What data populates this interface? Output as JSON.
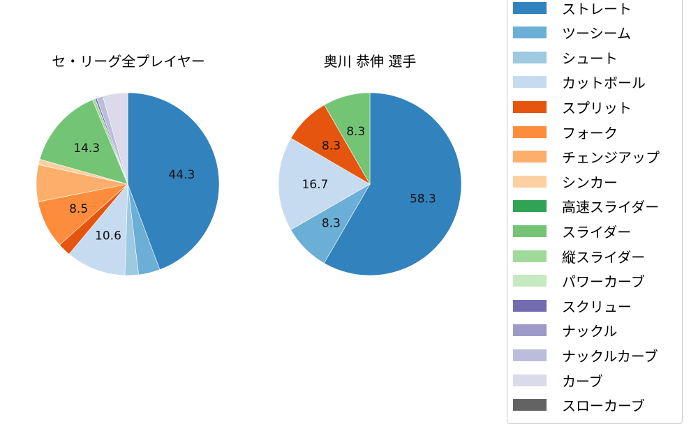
{
  "chart_data": [
    {
      "type": "pie",
      "title": "セ・リーグ全プレイヤー",
      "categories": [
        "ストレート",
        "ツーシーム",
        "シュート",
        "カットボール",
        "スプリット",
        "フォーク",
        "チェンジアップ",
        "シンカー",
        "高速スライダー",
        "スライダー",
        "縦スライダー",
        "パワーカーブ",
        "スクリュー",
        "ナックル",
        "ナックルカーブ",
        "カーブ",
        "スローカーブ"
      ],
      "values": [
        44.3,
        3.8,
        2.4,
        10.6,
        2.3,
        8.5,
        6.5,
        1.0,
        0.0,
        14.3,
        0.5,
        0.0,
        0.3,
        0.0,
        1.1,
        4.4,
        0.0
      ],
      "labels_shown": {
        "ストレート": "44.3",
        "カットボール": "10.6",
        "フォーク": "8.5",
        "スライダー": "14.3"
      },
      "start_angle": 90,
      "direction": "clockwise"
    },
    {
      "type": "pie",
      "title": "奥川 恭伸  選手",
      "categories": [
        "ストレート",
        "ツーシーム",
        "カットボール",
        "スプリット",
        "スライダー"
      ],
      "values": [
        58.3,
        8.3,
        16.7,
        8.3,
        8.3
      ],
      "labels_shown": {
        "ストレート": "58.3",
        "ツーシーム": "8.3",
        "カットボール": "16.7",
        "スプリット": "8.3",
        "スライダー": "8.3"
      },
      "start_angle": 90,
      "direction": "clockwise"
    }
  ],
  "titles": {
    "left": "セ・リーグ全プレイヤー",
    "right": "奥川 恭伸  選手"
  },
  "legend": {
    "items": [
      {
        "label": "ストレート",
        "color": "#3182bd"
      },
      {
        "label": "ツーシーム",
        "color": "#6baed6"
      },
      {
        "label": "シュート",
        "color": "#9ecae1"
      },
      {
        "label": "カットボール",
        "color": "#c6dbef"
      },
      {
        "label": "スプリット",
        "color": "#e6550d"
      },
      {
        "label": "フォーク",
        "color": "#fd8d3c"
      },
      {
        "label": "チェンジアップ",
        "color": "#fdae6b"
      },
      {
        "label": "シンカー",
        "color": "#fdd0a2"
      },
      {
        "label": "高速スライダー",
        "color": "#31a354"
      },
      {
        "label": "スライダー",
        "color": "#74c476"
      },
      {
        "label": "縦スライダー",
        "color": "#a1d99b"
      },
      {
        "label": "パワーカーブ",
        "color": "#c7e9c0"
      },
      {
        "label": "スクリュー",
        "color": "#756bb1"
      },
      {
        "label": "ナックル",
        "color": "#9e9ac8"
      },
      {
        "label": "ナックルカーブ",
        "color": "#bcbddc"
      },
      {
        "label": "カーブ",
        "color": "#dadaeb"
      },
      {
        "label": "スローカーブ",
        "color": "#636363"
      }
    ]
  }
}
